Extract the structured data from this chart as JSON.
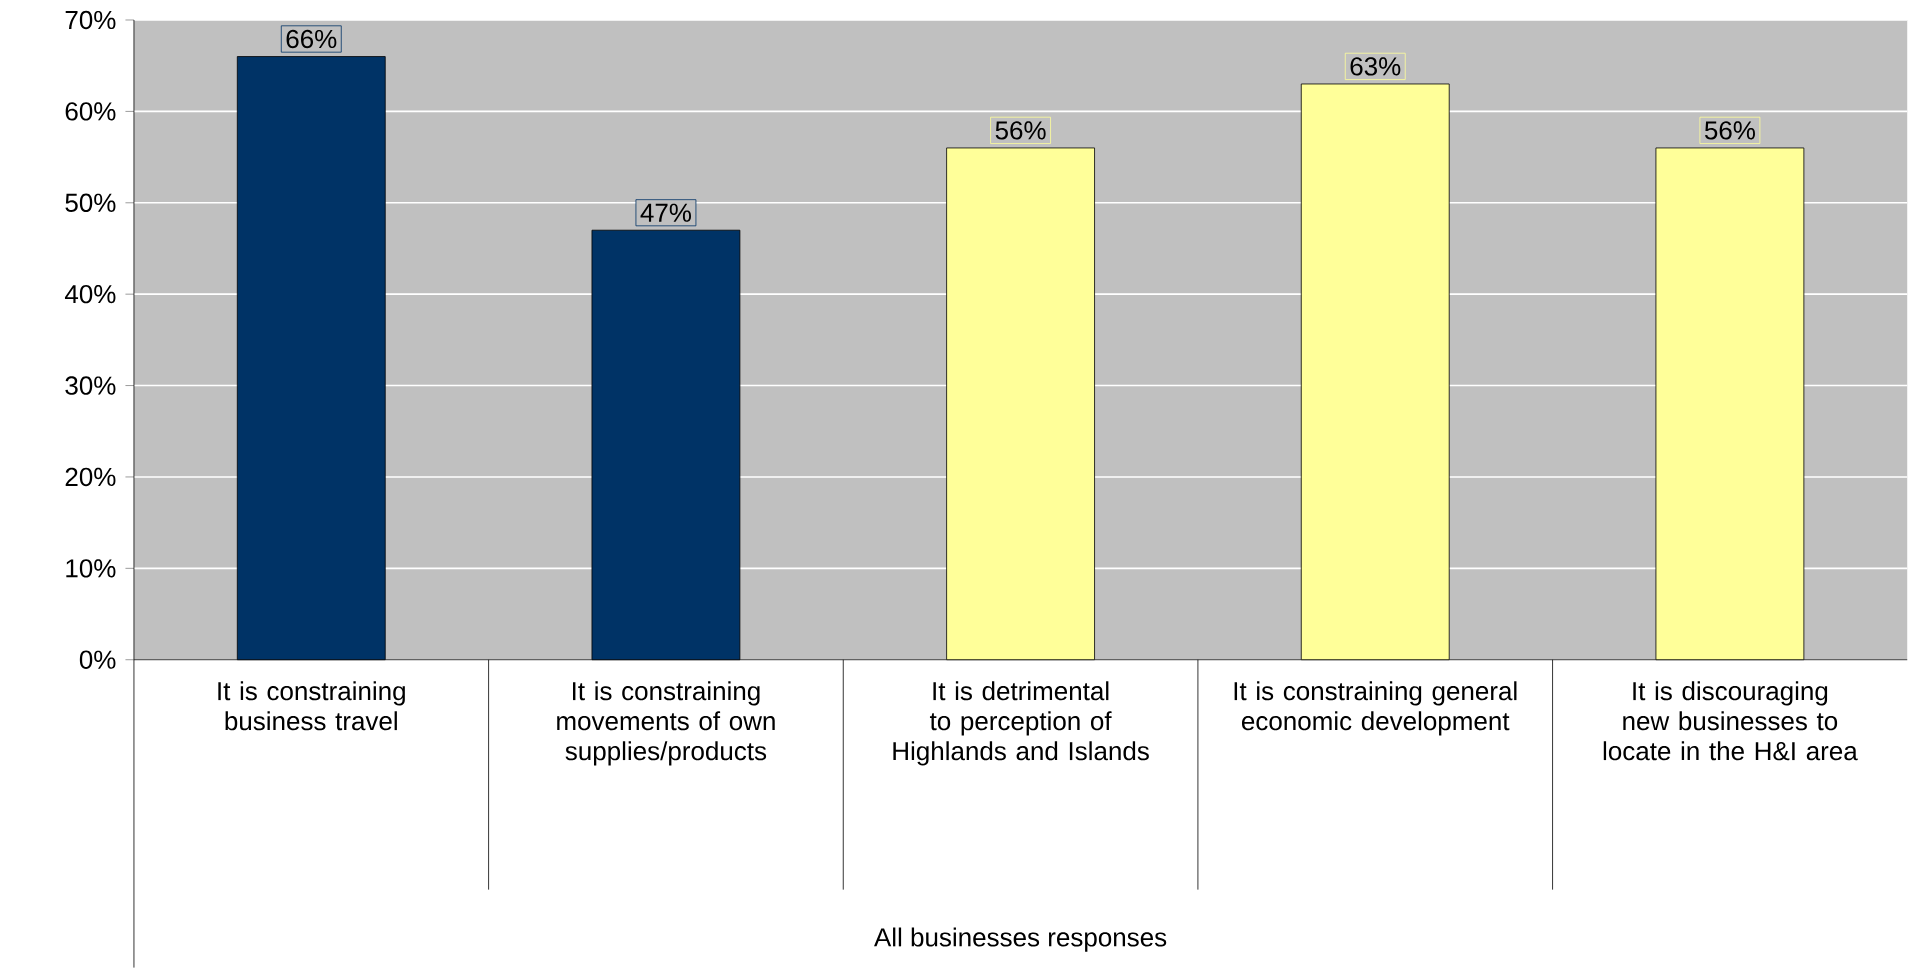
{
  "chart_data": {
    "type": "bar",
    "annotations": [
      "All businesses responses"
    ],
    "categories": [
      "It is constraining business travel",
      "It is constraining movements of own supplies/products",
      "It is detrimental to perception of Highlands and Islands",
      "It is constraining general economic development",
      "It is discouraging new businesses to locate in the H&I area"
    ],
    "values": [
      66,
      47,
      56,
      63,
      56
    ],
    "value_labels": [
      "66%",
      "47%",
      "56%",
      "63%",
      "56%"
    ],
    "colors": [
      "#003366",
      "#003366",
      "#ffff99",
      "#ffff99",
      "#ffff99"
    ],
    "ylim": [
      0,
      70
    ],
    "yticks": [
      {
        "value": 0,
        "label": "0%"
      },
      {
        "value": 10,
        "label": "10%"
      },
      {
        "value": 20,
        "label": "20%"
      },
      {
        "value": 30,
        "label": "30%"
      },
      {
        "value": 40,
        "label": "40%"
      },
      {
        "value": 50,
        "label": "50%"
      },
      {
        "value": 60,
        "label": "60%"
      },
      {
        "value": 70,
        "label": "70%"
      }
    ],
    "grid": "y"
  }
}
